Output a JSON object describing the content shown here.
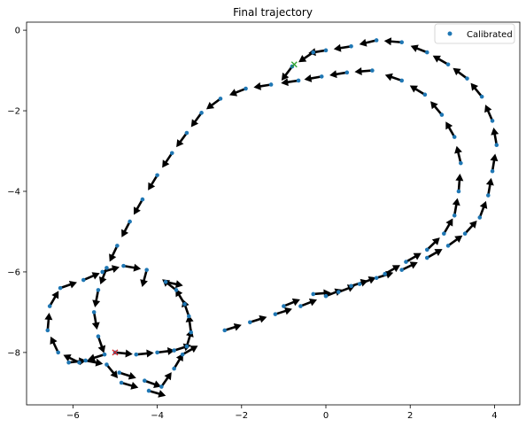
{
  "chart_data": {
    "type": "scatter",
    "title": "Final trajectory",
    "xlabel": "",
    "ylabel": "",
    "xlim": [
      -7.1,
      4.6
    ],
    "ylim": [
      -9.3,
      0.2
    ],
    "xticks": [
      -6,
      -4,
      -2,
      0,
      2,
      4
    ],
    "yticks": [
      0,
      -2,
      -4,
      -6,
      -8
    ],
    "xtick_labels": [
      "−6",
      "−4",
      "−2",
      "0",
      "2",
      "4"
    ],
    "ytick_labels": [
      "0",
      "−2",
      "−4",
      "−6",
      "−8"
    ],
    "grid": false,
    "legend": {
      "placement": "top-right",
      "entries": [
        "Calibrated"
      ]
    },
    "series": [
      {
        "name": "Calibrated",
        "color": "#1f77b4",
        "marker": "dot",
        "points": [
          [
            -5.0,
            -8.0
          ],
          [
            -4.5,
            -8.05
          ],
          [
            -4.0,
            -8.0
          ],
          [
            -3.6,
            -7.95
          ],
          [
            -3.3,
            -7.85
          ],
          [
            -3.2,
            -7.5
          ],
          [
            -3.25,
            -7.1
          ],
          [
            -3.35,
            -6.8
          ],
          [
            -3.55,
            -6.45
          ],
          [
            -3.8,
            -6.25
          ],
          [
            -1.0,
            -6.85
          ],
          [
            -0.3,
            -6.55
          ],
          [
            0.3,
            -6.5
          ],
          [
            0.8,
            -6.3
          ],
          [
            1.4,
            -6.05
          ],
          [
            1.9,
            -5.75
          ],
          [
            2.4,
            -5.45
          ],
          [
            2.8,
            -5.05
          ],
          [
            3.05,
            -4.6
          ],
          [
            3.15,
            -4.0
          ],
          [
            3.2,
            -3.3
          ],
          [
            3.05,
            -2.65
          ],
          [
            2.75,
            -2.1
          ],
          [
            2.35,
            -1.6
          ],
          [
            1.8,
            -1.25
          ],
          [
            1.1,
            -1.0
          ],
          [
            0.5,
            -1.05
          ],
          [
            -0.1,
            -1.15
          ],
          [
            -0.65,
            -1.25
          ],
          [
            -1.3,
            -1.35
          ],
          [
            -1.9,
            -1.45
          ],
          [
            -2.5,
            -1.7
          ],
          [
            -2.95,
            -2.05
          ],
          [
            -3.3,
            -2.55
          ],
          [
            -3.65,
            -3.05
          ],
          [
            -4.0,
            -3.6
          ],
          [
            -4.35,
            -4.2
          ],
          [
            -4.65,
            -4.75
          ],
          [
            -4.95,
            -5.35
          ],
          [
            -5.2,
            -5.9
          ],
          [
            -5.4,
            -6.45
          ],
          [
            -5.5,
            -7.0
          ],
          [
            -5.4,
            -7.6
          ],
          [
            -5.25,
            -8.05
          ],
          [
            -5.85,
            -8.25
          ],
          [
            -6.35,
            -8.0
          ],
          [
            -6.6,
            -7.45
          ],
          [
            -6.55,
            -6.85
          ],
          [
            -6.3,
            -6.4
          ],
          [
            -5.75,
            -6.2
          ],
          [
            -5.3,
            -6.0
          ],
          [
            -4.8,
            -5.85
          ],
          [
            -4.25,
            -5.95
          ],
          [
            -4.9,
            -8.5
          ],
          [
            -4.3,
            -8.7
          ],
          [
            -3.9,
            -8.85
          ],
          [
            -3.6,
            -8.4
          ],
          [
            -3.4,
            -8.05
          ],
          [
            -2.4,
            -7.45
          ],
          [
            -1.8,
            -7.25
          ],
          [
            -1.2,
            -7.05
          ],
          [
            -0.6,
            -6.85
          ],
          [
            0.0,
            -6.6
          ],
          [
            0.6,
            -6.35
          ],
          [
            1.2,
            -6.15
          ],
          [
            1.8,
            -5.95
          ],
          [
            2.4,
            -5.65
          ],
          [
            2.9,
            -5.35
          ],
          [
            3.3,
            -5.05
          ],
          [
            3.65,
            -4.65
          ],
          [
            3.85,
            -4.1
          ],
          [
            3.95,
            -3.5
          ],
          [
            4.05,
            -2.85
          ],
          [
            3.95,
            -2.25
          ],
          [
            3.7,
            -1.65
          ],
          [
            3.35,
            -1.2
          ],
          [
            2.9,
            -0.85
          ],
          [
            2.4,
            -0.55
          ],
          [
            1.8,
            -0.3
          ],
          [
            1.2,
            -0.25
          ],
          [
            0.6,
            -0.4
          ],
          [
            0.0,
            -0.5
          ],
          [
            -0.3,
            -0.55
          ],
          [
            -0.8,
            -0.9
          ],
          [
            -6.1,
            -8.25
          ],
          [
            -5.7,
            -8.2
          ],
          [
            -5.2,
            -8.3
          ],
          [
            -4.85,
            -8.75
          ],
          [
            -4.2,
            -8.95
          ]
        ]
      }
    ],
    "start_marker": {
      "symbol": "x",
      "color": "#d62728",
      "x": -5.0,
      "y": -8.0
    },
    "end_marker": {
      "symbol": "x",
      "color": "#2ca02c",
      "x": -0.75,
      "y": -0.85
    }
  }
}
